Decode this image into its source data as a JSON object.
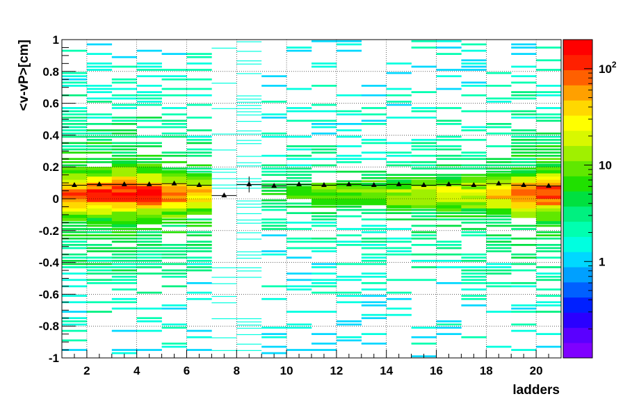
{
  "chart_data": {
    "type": "heatmap",
    "title": "",
    "xlabel": "ladders",
    "ylabel": "<v-vP>[cm]",
    "xlim": [
      1,
      21
    ],
    "ylim": [
      -1,
      1
    ],
    "x_ticks": [
      2,
      4,
      6,
      8,
      10,
      12,
      14,
      16,
      18,
      20
    ],
    "x_tick_labels": [
      "2",
      "4",
      "6",
      "8",
      "10",
      "12",
      "14",
      "16",
      "18",
      "20"
    ],
    "y_ticks": [
      -1,
      -0.8,
      -0.6,
      -0.4,
      -0.2,
      0,
      0.2,
      0.4,
      0.6,
      0.8,
      1
    ],
    "y_tick_labels": [
      "-1",
      "-0.8",
      "-0.6",
      "-0.4",
      "-0.2",
      "0",
      "0.2",
      "0.4",
      "0.6",
      "0.8",
      "1"
    ],
    "grid": true,
    "colorbar": {
      "scale": "log",
      "range": [
        0.1,
        200
      ],
      "labels": [
        {
          "value": 1,
          "text": "1"
        },
        {
          "value": 10,
          "text": "10"
        },
        {
          "value": 100,
          "base": "10",
          "exponent": "2"
        }
      ],
      "colors": [
        "#7f00ff",
        "#5a00ff",
        "#2a00ff",
        "#0020ff",
        "#0060ff",
        "#00a0ff",
        "#00d8ff",
        "#00ffe0",
        "#00ffb0",
        "#00f080",
        "#00e040",
        "#20e000",
        "#60e800",
        "#a0f000",
        "#d8f800",
        "#ffff00",
        "#ffd800",
        "#ffa000",
        "#ff6000",
        "#ff2000",
        "#ff0000"
      ]
    },
    "ladders": [
      1,
      2,
      3,
      4,
      5,
      6,
      7,
      8,
      9,
      10,
      11,
      12,
      13,
      14,
      15,
      16,
      17,
      18,
      19,
      20
    ],
    "peak_intensity": [
      0.9,
      0.95,
      1.0,
      0.95,
      0.85,
      0.7,
      0.0,
      0.0,
      0.35,
      0.4,
      0.45,
      0.45,
      0.45,
      0.5,
      0.55,
      0.6,
      0.6,
      0.75,
      0.85,
      0.95
    ],
    "series": [
      {
        "name": "",
        "type": "profile",
        "x": [
          1.5,
          2.5,
          3.5,
          4.5,
          5.5,
          6.5,
          7.5,
          8.5,
          9.5,
          10.5,
          11.5,
          12.5,
          13.5,
          14.5,
          15.5,
          16.5,
          17.5,
          18.5,
          19.5,
          20.5
        ],
        "y": [
          0.085,
          0.09,
          0.09,
          0.09,
          0.095,
          0.085,
          0.02,
          0.09,
          0.08,
          0.09,
          0.085,
          0.09,
          0.085,
          0.09,
          0.085,
          0.09,
          0.085,
          0.095,
          0.085,
          0.08
        ],
        "yerr": [
          0.005,
          0.005,
          0.005,
          0.005,
          0.005,
          0.005,
          0.01,
          0.05,
          0.005,
          0.005,
          0.005,
          0.005,
          0.005,
          0.005,
          0.005,
          0.005,
          0.005,
          0.005,
          0.005,
          0.005
        ]
      }
    ]
  }
}
